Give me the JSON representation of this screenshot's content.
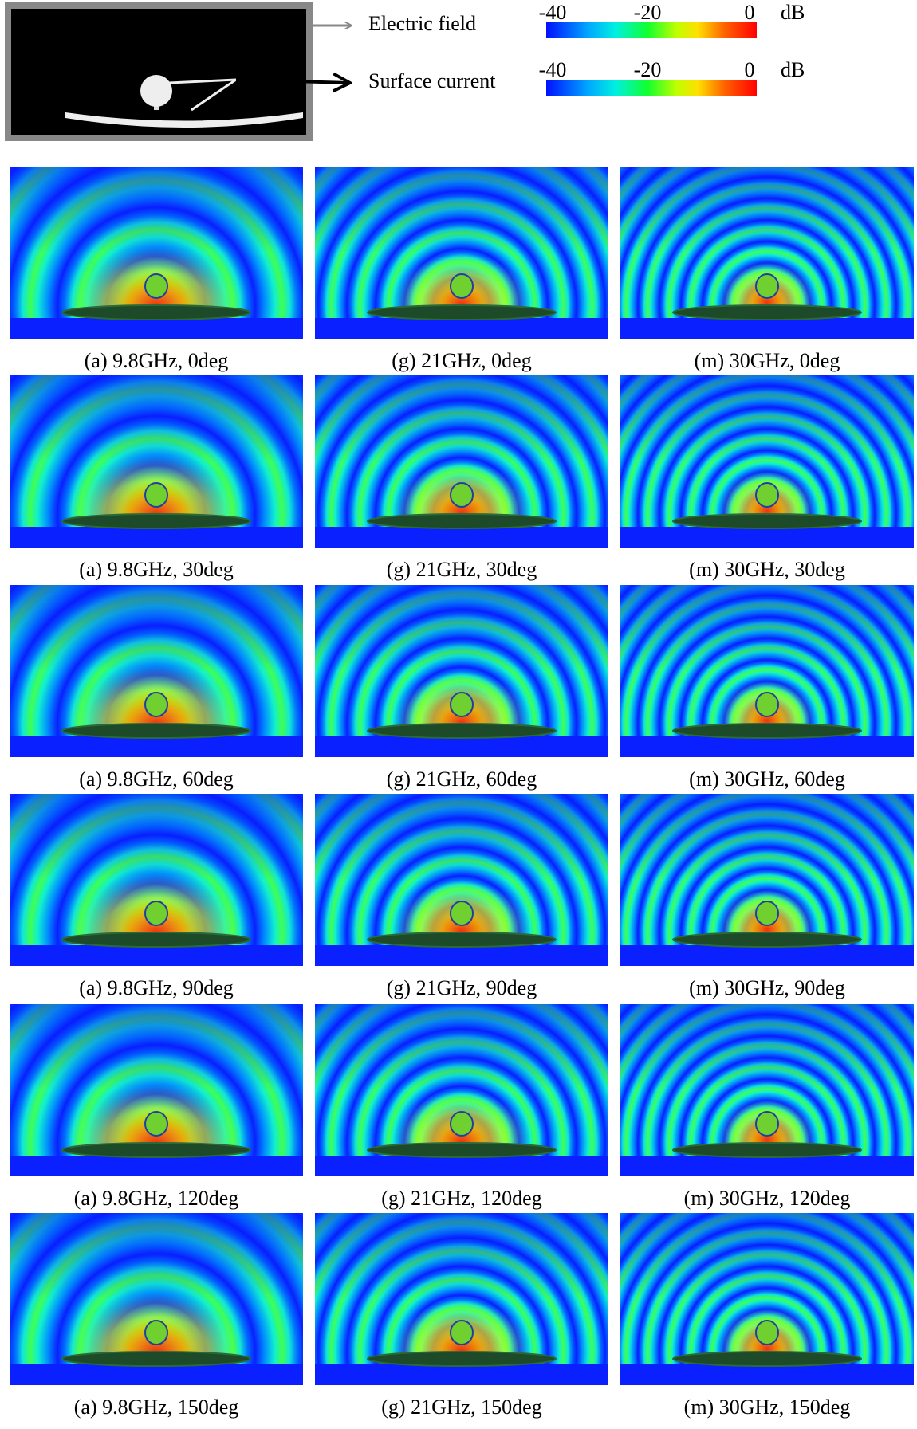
{
  "legend": {
    "items": [
      {
        "label": "Electric field",
        "scale": {
          "ticks": [
            "-40",
            "-20",
            "0"
          ],
          "unit": "dB"
        }
      },
      {
        "label": "Surface current",
        "scale": {
          "ticks": [
            "-40",
            "-20",
            "0"
          ],
          "unit": "dB"
        }
      }
    ]
  },
  "panels": [
    [
      "(a) 9.8GHz, 0deg",
      "(g) 21GHz, 0deg",
      "(m) 30GHz, 0deg"
    ],
    [
      "(a) 9.8GHz, 30deg",
      "(g) 21GHz, 30deg",
      "(m) 30GHz, 30deg"
    ],
    [
      "(a) 9.8GHz, 60deg",
      "(g) 21GHz, 60deg",
      "(m) 30GHz, 60deg"
    ],
    [
      "(a) 9.8GHz, 90deg",
      "(g) 21GHz, 90deg",
      "(m) 30GHz, 90deg"
    ],
    [
      "(a) 9.8GHz, 120deg",
      "(g) 21GHz, 120deg",
      "(m) 30GHz, 120deg"
    ],
    [
      "(a) 9.8GHz, 150deg",
      "(g) 21GHz, 150deg",
      "(m) 30GHz, 150deg"
    ]
  ]
}
